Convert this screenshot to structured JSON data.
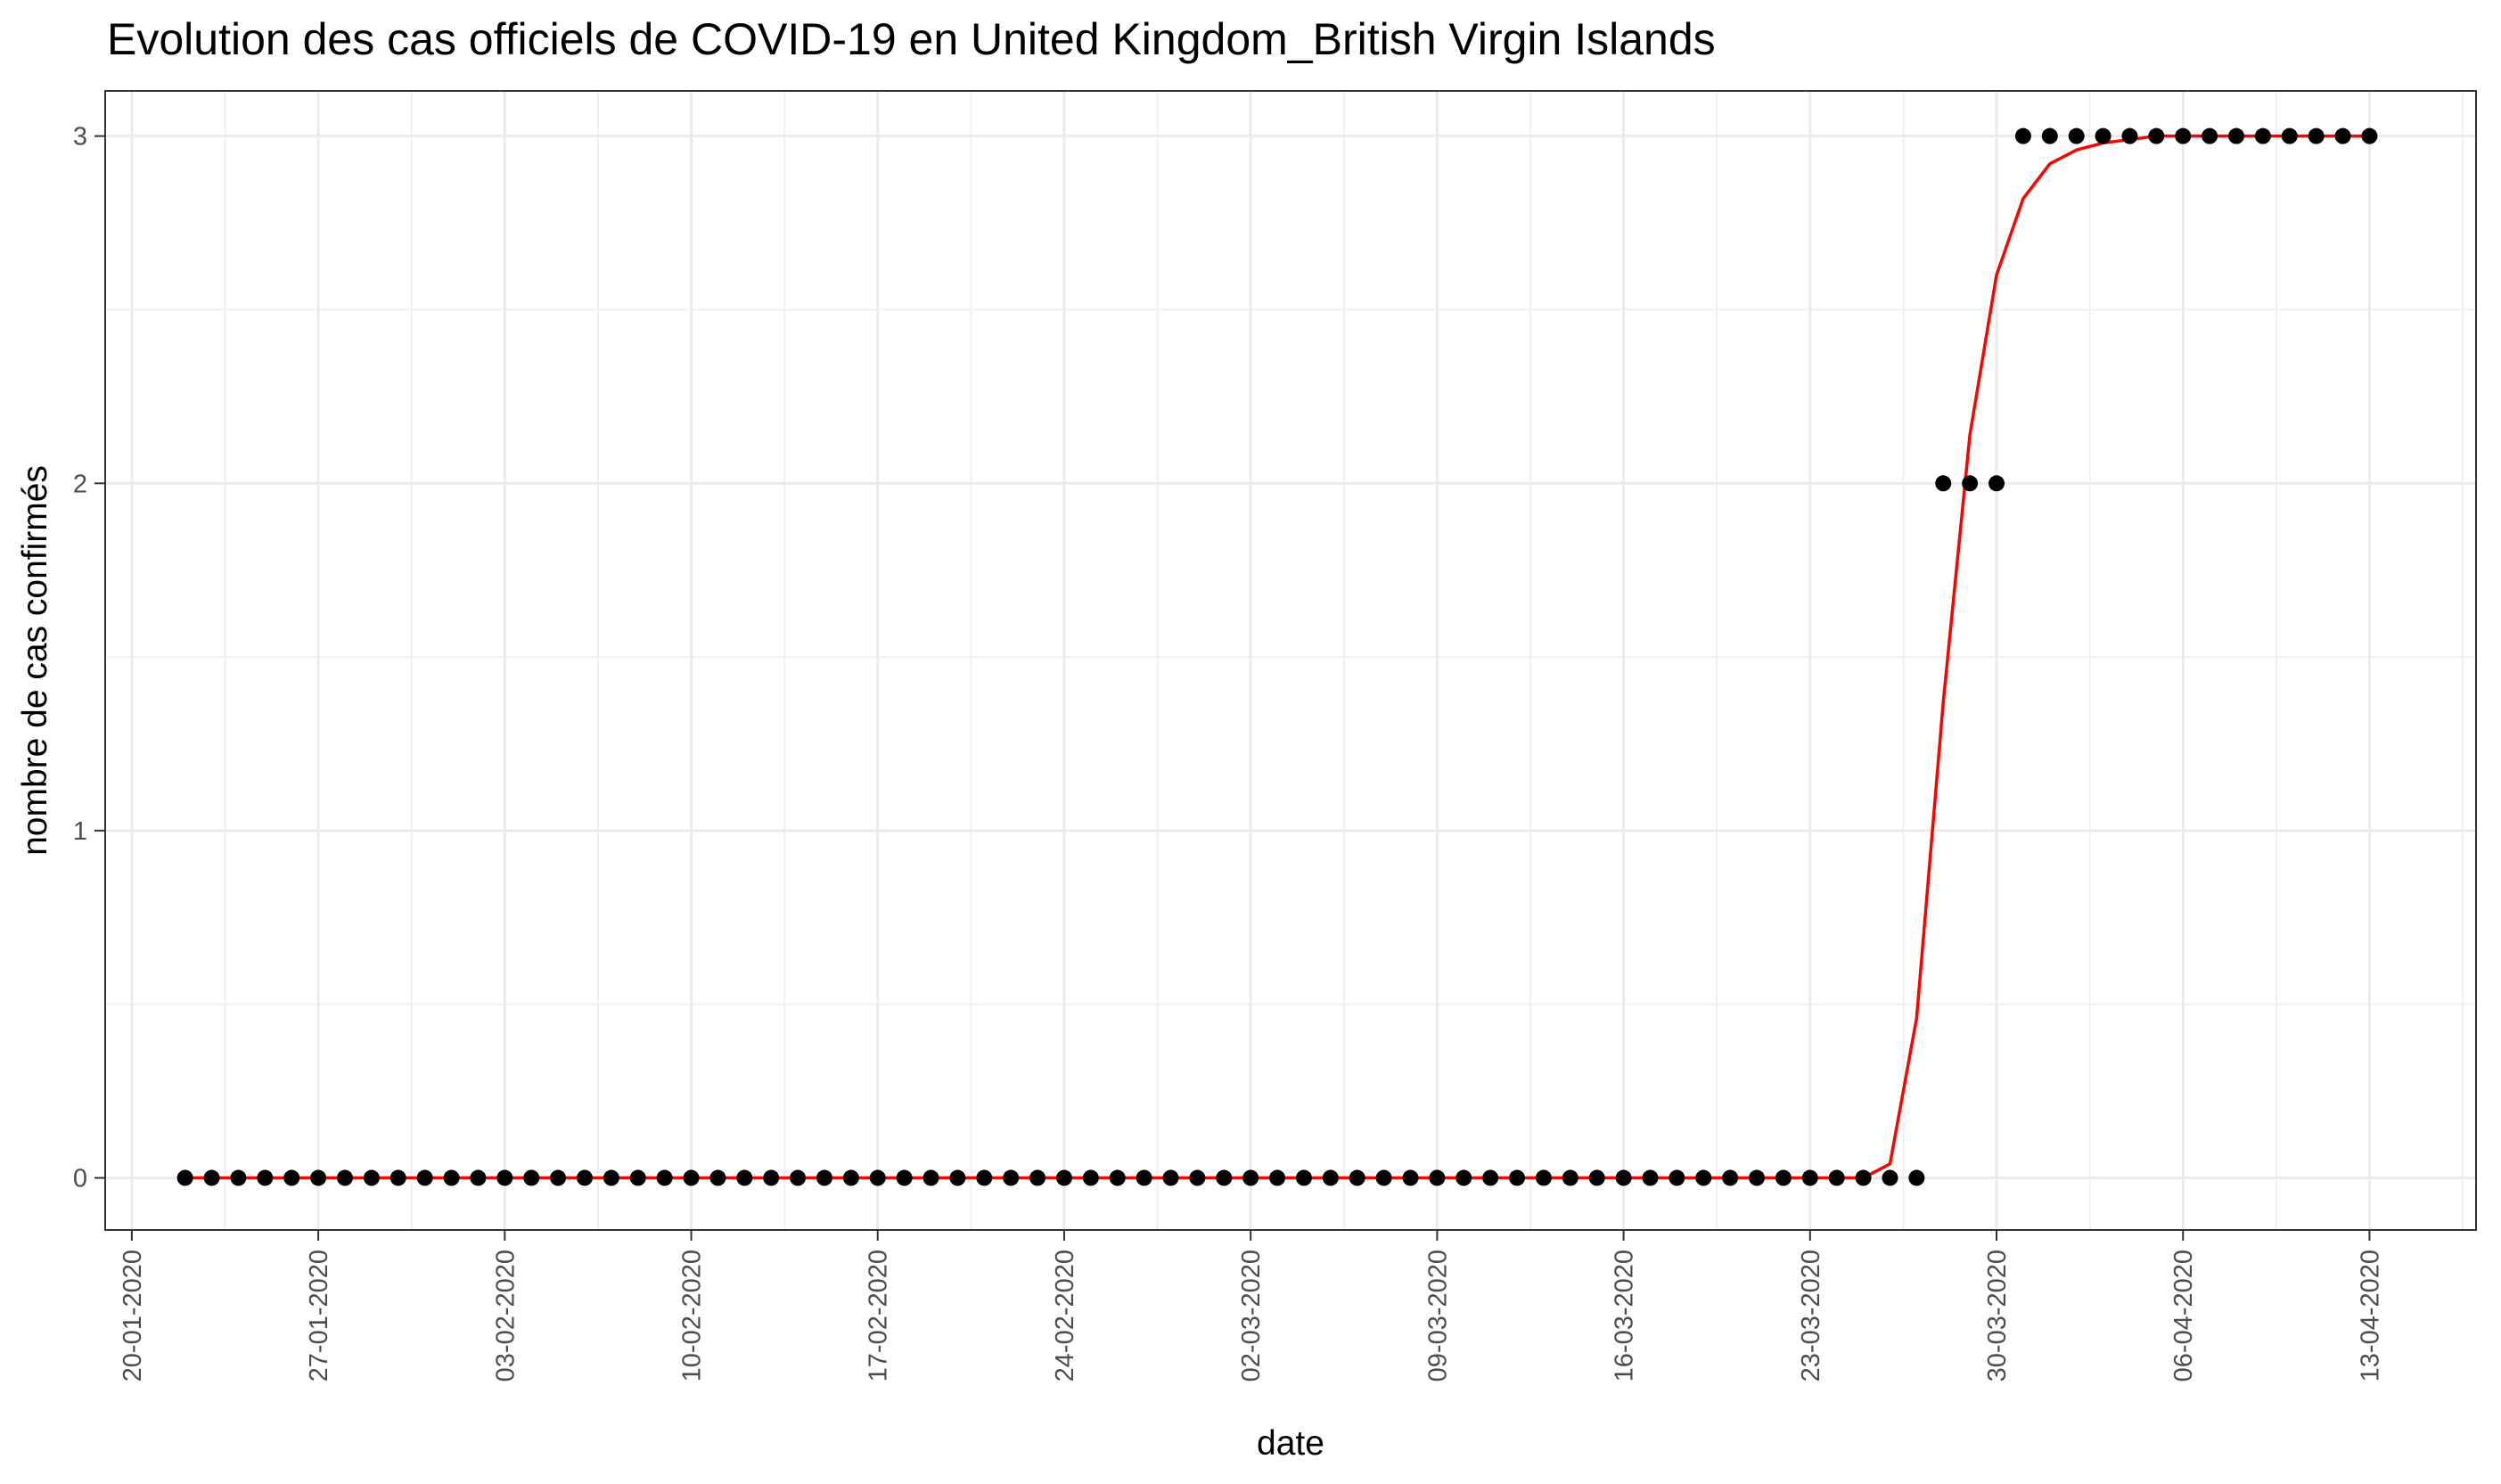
{
  "chart_data": {
    "type": "scatter",
    "title": "Evolution des cas officiels de COVID-19 en United Kingdom_British Virgin Islands",
    "xlabel": "date",
    "ylabel": "nombre de cas confirmés",
    "x_tick_labels": [
      "20-01-2020",
      "27-01-2020",
      "03-02-2020",
      "10-02-2020",
      "17-02-2020",
      "24-02-2020",
      "02-03-2020",
      "09-03-2020",
      "16-03-2020",
      "23-03-2020",
      "30-03-2020",
      "06-04-2020",
      "13-04-2020"
    ],
    "y_tick_labels": [
      "0",
      "1",
      "2",
      "3"
    ],
    "xlim": [
      "2020-01-19",
      "2020-04-17"
    ],
    "ylim": [
      -0.15,
      3.13
    ],
    "grid": true,
    "series": [
      {
        "kind": "points",
        "color": "#000000",
        "start_date": "2020-01-22",
        "values": [
          0,
          0,
          0,
          0,
          0,
          0,
          0,
          0,
          0,
          0,
          0,
          0,
          0,
          0,
          0,
          0,
          0,
          0,
          0,
          0,
          0,
          0,
          0,
          0,
          0,
          0,
          0,
          0,
          0,
          0,
          0,
          0,
          0,
          0,
          0,
          0,
          0,
          0,
          0,
          0,
          0,
          0,
          0,
          0,
          0,
          0,
          0,
          0,
          0,
          0,
          0,
          0,
          0,
          0,
          0,
          0,
          0,
          0,
          0,
          0,
          0,
          0,
          0,
          0,
          0,
          0,
          2,
          2,
          2,
          3,
          3,
          3,
          3,
          3,
          3,
          3,
          3,
          3,
          3,
          3,
          3,
          3,
          3
        ]
      },
      {
        "kind": "line",
        "color": "#ff0000",
        "start_date": "2020-01-22",
        "values": [
          0,
          0,
          0,
          0,
          0,
          0,
          0,
          0,
          0,
          0,
          0,
          0,
          0,
          0,
          0,
          0,
          0,
          0,
          0,
          0,
          0,
          0,
          0,
          0,
          0,
          0,
          0,
          0,
          0,
          0,
          0,
          0,
          0,
          0,
          0,
          0,
          0,
          0,
          0,
          0,
          0,
          0,
          0,
          0,
          0,
          0,
          0,
          0,
          0,
          0,
          0,
          0,
          0,
          0,
          0,
          0,
          0,
          0,
          0,
          0,
          0,
          0,
          0,
          0,
          0.04,
          0.46,
          1.37,
          2.14,
          2.6,
          2.82,
          2.92,
          2.96,
          2.98,
          2.99,
          3,
          3,
          3,
          3,
          3,
          3,
          3,
          3,
          3
        ]
      }
    ]
  }
}
